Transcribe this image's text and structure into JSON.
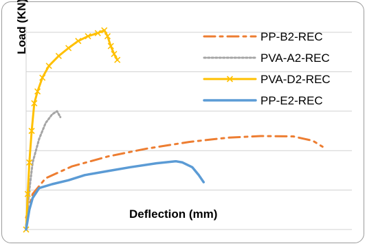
{
  "chart_data": {
    "type": "line",
    "title": "",
    "xlabel": "Deflection (mm)",
    "ylabel": "Load (KN)",
    "xlim": [
      0,
      100
    ],
    "ylim": [
      0,
      5
    ],
    "grid": true,
    "legend_position": "top-right",
    "series": [
      {
        "name": "PP-B2-REC",
        "color": "#ED7D31",
        "style": "dashdot",
        "points": [
          [
            0,
            0.3
          ],
          [
            2,
            0.9
          ],
          [
            6,
            1.3
          ],
          [
            14,
            1.6
          ],
          [
            25,
            1.85
          ],
          [
            37,
            2.05
          ],
          [
            50,
            2.22
          ],
          [
            62,
            2.33
          ],
          [
            72,
            2.37
          ],
          [
            82,
            2.36
          ],
          [
            88,
            2.25
          ],
          [
            91,
            2.1
          ]
        ]
      },
      {
        "name": "PVA-A2-REC",
        "color": "#A5A5A5",
        "style": "dotted",
        "points": [
          [
            0,
            0.1
          ],
          [
            1,
            1.0
          ],
          [
            2,
            1.7
          ],
          [
            4,
            2.3
          ],
          [
            6,
            2.7
          ],
          [
            8,
            2.92
          ],
          [
            9.5,
            3.0
          ],
          [
            10.5,
            2.85
          ]
        ]
      },
      {
        "name": "PVA-D2-REC",
        "color": "#FFC000",
        "style": "solid-x",
        "points": [
          [
            0,
            0.0
          ],
          [
            0.5,
            0.9
          ],
          [
            1,
            1.7
          ],
          [
            1.7,
            2.5
          ],
          [
            2.5,
            3.2
          ],
          [
            3.5,
            3.5
          ],
          [
            5,
            3.85
          ],
          [
            7,
            4.15
          ],
          [
            10,
            4.4
          ],
          [
            13,
            4.6
          ],
          [
            16,
            4.78
          ],
          [
            19,
            4.9
          ],
          [
            22,
            4.98
          ],
          [
            24,
            5.05
          ],
          [
            25,
            4.9
          ],
          [
            26,
            4.65
          ],
          [
            27,
            4.45
          ],
          [
            28,
            4.3
          ]
        ]
      },
      {
        "name": "PP-E2-REC",
        "color": "#5B9BD5",
        "style": "solid",
        "points": [
          [
            0,
            0.0
          ],
          [
            1,
            0.5
          ],
          [
            2,
            0.8
          ],
          [
            4,
            1.05
          ],
          [
            8,
            1.15
          ],
          [
            13,
            1.25
          ],
          [
            18,
            1.38
          ],
          [
            25,
            1.48
          ],
          [
            32,
            1.58
          ],
          [
            40,
            1.68
          ],
          [
            46,
            1.73
          ],
          [
            48,
            1.7
          ],
          [
            51,
            1.58
          ],
          [
            53,
            1.38
          ],
          [
            54.5,
            1.2
          ]
        ]
      }
    ]
  }
}
